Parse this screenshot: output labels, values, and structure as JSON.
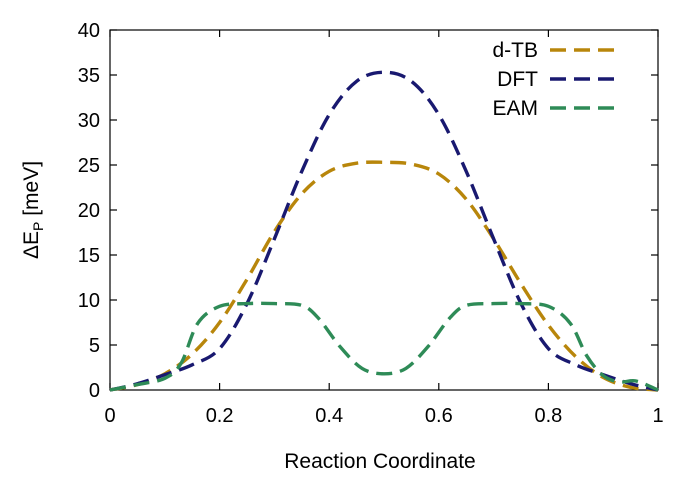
{
  "chart_data": {
    "type": "line",
    "title": "",
    "xlabel": "Reaction Coordinate",
    "ylabel_main": "ΔE",
    "ylabel_sub": "P",
    "ylabel_unit": " [meV]",
    "xlim": [
      0,
      1
    ],
    "ylim": [
      0,
      40
    ],
    "xticks": [
      0,
      0.2,
      0.4,
      0.6,
      0.8,
      1
    ],
    "xtick_labels": [
      "0",
      "0.2",
      "0.4",
      "0.6",
      "0.8",
      "1"
    ],
    "yticks": [
      0,
      5,
      10,
      15,
      20,
      25,
      30,
      35,
      40
    ],
    "ytick_labels": [
      "0",
      "5",
      "10",
      "15",
      "20",
      "25",
      "30",
      "35",
      "40"
    ],
    "grid": false,
    "legend_position": "top-right",
    "series": [
      {
        "name": "d-TB",
        "color": "#b8860b",
        "x": [
          0,
          0.05,
          0.1,
          0.15,
          0.2,
          0.25,
          0.3,
          0.35,
          0.4,
          0.45,
          0.5,
          0.55,
          0.6,
          0.65,
          0.7,
          0.75,
          0.8,
          0.85,
          0.9,
          0.95,
          1
        ],
        "y": [
          0,
          0.6,
          1.8,
          4.0,
          7.5,
          12.3,
          17.6,
          21.8,
          24.3,
          25.2,
          25.3,
          25.1,
          24.0,
          21.2,
          16.8,
          11.8,
          7.2,
          3.7,
          1.4,
          0.3,
          0
        ]
      },
      {
        "name": "DFT",
        "color": "#191970",
        "x": [
          0,
          0.05,
          0.1,
          0.15,
          0.2,
          0.25,
          0.3,
          0.35,
          0.4,
          0.45,
          0.5,
          0.55,
          0.6,
          0.65,
          0.7,
          0.75,
          0.8,
          0.85,
          0.9,
          0.95,
          1
        ],
        "y": [
          0,
          0.7,
          1.7,
          2.8,
          4.6,
          9.6,
          16.8,
          24.3,
          30.6,
          34.3,
          35.3,
          34.3,
          30.6,
          24.3,
          16.8,
          9.6,
          4.6,
          2.8,
          1.7,
          0.7,
          0
        ]
      },
      {
        "name": "EAM",
        "color": "#2e8b57",
        "x": [
          0,
          0.05,
          0.1,
          0.13,
          0.16,
          0.2,
          0.25,
          0.3,
          0.35,
          0.38,
          0.42,
          0.46,
          0.5,
          0.54,
          0.58,
          0.62,
          0.65,
          0.7,
          0.75,
          0.8,
          0.84,
          0.87,
          0.9,
          0.93,
          0.96,
          1
        ],
        "y": [
          0,
          0.6,
          1.3,
          3.0,
          7.4,
          9.3,
          9.6,
          9.6,
          9.4,
          8.0,
          4.8,
          2.4,
          1.8,
          2.4,
          4.8,
          8.0,
          9.4,
          9.6,
          9.6,
          9.3,
          7.4,
          3.8,
          1.6,
          0.9,
          1.0,
          0
        ]
      }
    ]
  }
}
